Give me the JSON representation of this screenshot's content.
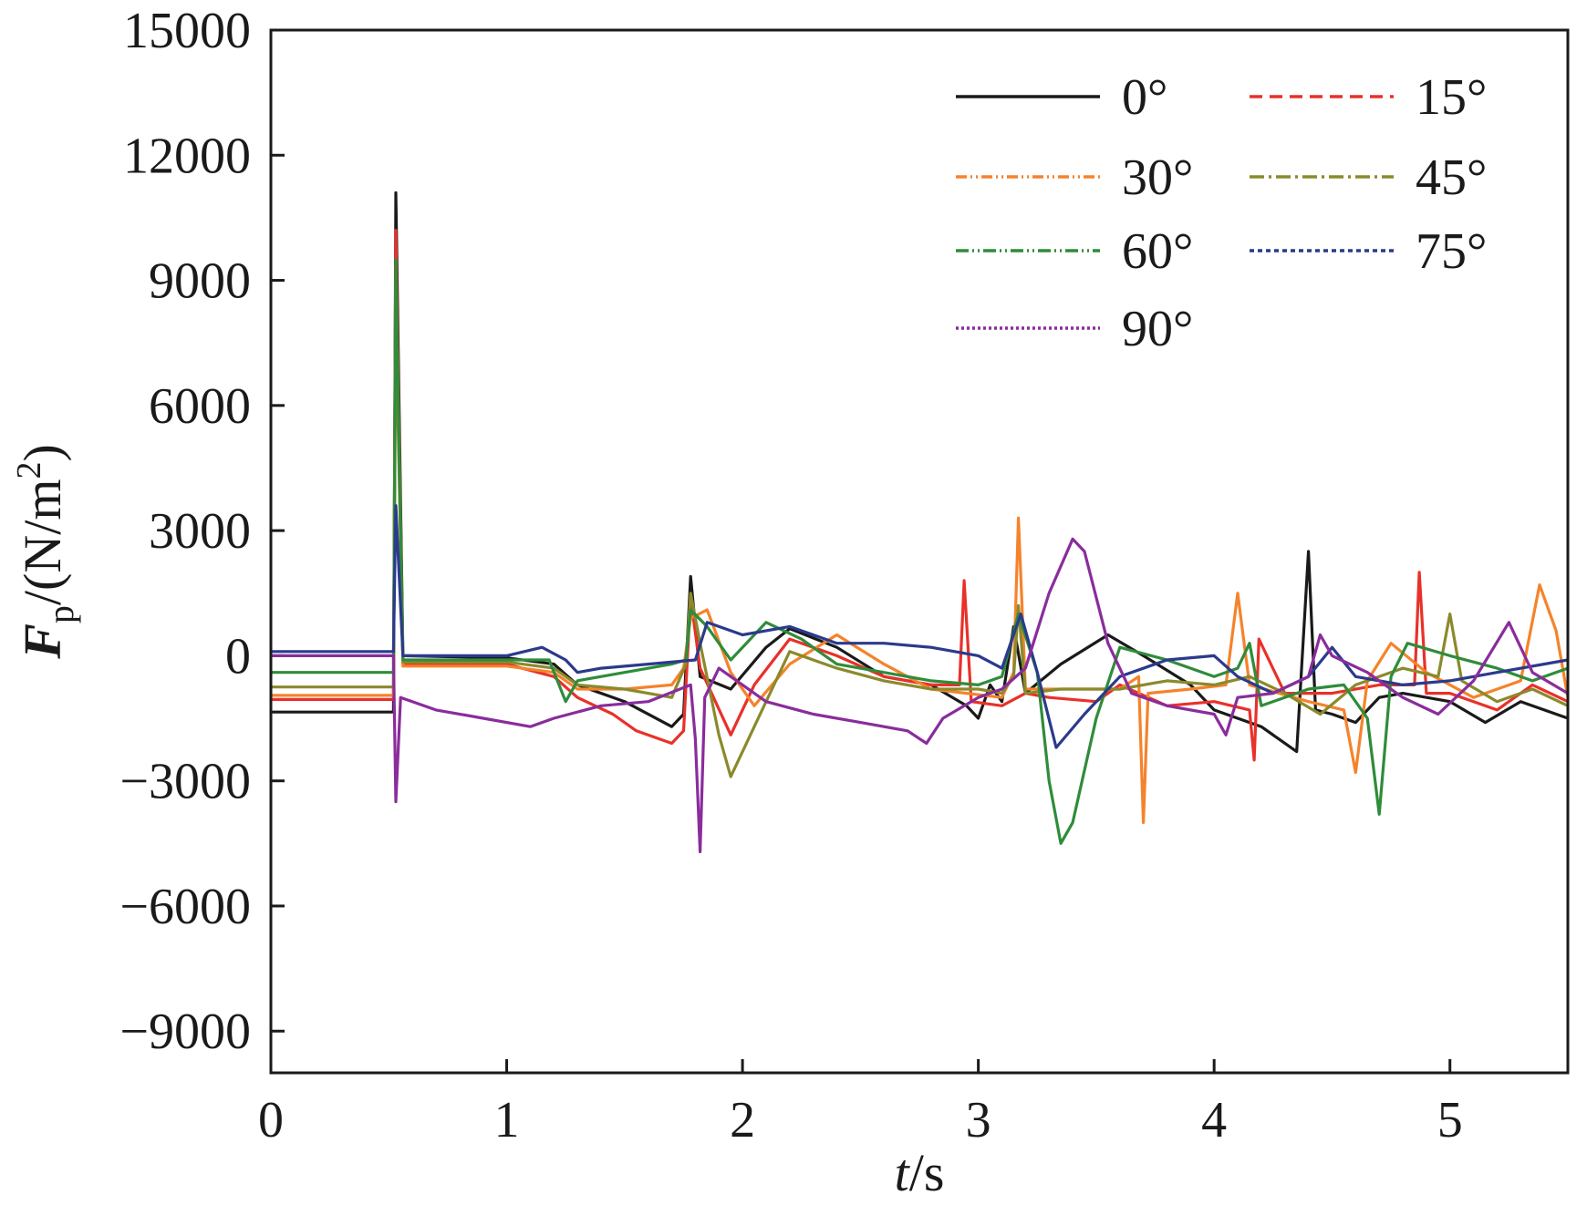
{
  "chart_data": {
    "type": "line",
    "title": "",
    "xlabel": {
      "var": "t",
      "unit": "/s"
    },
    "ylabel": {
      "var": "F",
      "sub": "p",
      "unit": "/(N/m",
      "sup": "2",
      "close": ")"
    },
    "xlim": [
      0,
      5.5
    ],
    "ylim": [
      -10000,
      15000
    ],
    "xticks": [
      0,
      1,
      2,
      3,
      4,
      5
    ],
    "xtick_labels": [
      "0",
      "1",
      "2",
      "3",
      "4",
      "5"
    ],
    "yticks": [
      15000,
      12000,
      9000,
      6000,
      3000,
      0,
      -3000,
      -6000,
      -9000
    ],
    "ytick_labels": [
      "15000",
      "12000",
      "9000",
      "6000",
      "3000",
      "0",
      "−3000",
      "−6000",
      "−9000"
    ],
    "grid": false,
    "legend_position": "top-right",
    "series": [
      {
        "name": "0°",
        "color": "#1a1a1a",
        "dash": "none",
        "points": [
          [
            0,
            -1350
          ],
          [
            0.52,
            -1350
          ],
          [
            0.53,
            11100
          ],
          [
            0.56,
            0
          ],
          [
            1.0,
            -50
          ],
          [
            1.2,
            -200
          ],
          [
            1.3,
            -700
          ],
          [
            1.5,
            -1100
          ],
          [
            1.7,
            -1700
          ],
          [
            1.75,
            -1400
          ],
          [
            1.78,
            1900
          ],
          [
            1.82,
            -500
          ],
          [
            1.95,
            -800
          ],
          [
            2.1,
            200
          ],
          [
            2.2,
            650
          ],
          [
            2.4,
            200
          ],
          [
            2.6,
            -500
          ],
          [
            2.8,
            -700
          ],
          [
            2.95,
            -1200
          ],
          [
            3.0,
            -1500
          ],
          [
            3.05,
            -700
          ],
          [
            3.1,
            -1100
          ],
          [
            3.15,
            700
          ],
          [
            3.2,
            -900
          ],
          [
            3.35,
            -200
          ],
          [
            3.55,
            500
          ],
          [
            3.7,
            0
          ],
          [
            3.9,
            -700
          ],
          [
            4.0,
            -1300
          ],
          [
            4.2,
            -1700
          ],
          [
            4.35,
            -2300
          ],
          [
            4.4,
            2500
          ],
          [
            4.43,
            -1300
          ],
          [
            4.5,
            -1400
          ],
          [
            4.6,
            -1600
          ],
          [
            4.7,
            -1000
          ],
          [
            4.8,
            -900
          ],
          [
            5.0,
            -1100
          ],
          [
            5.15,
            -1600
          ],
          [
            5.3,
            -1100
          ],
          [
            5.5,
            -1500
          ]
        ]
      },
      {
        "name": "15°",
        "color": "#e8312a",
        "dash": "14 8",
        "points": [
          [
            0,
            -1050
          ],
          [
            0.52,
            -1050
          ],
          [
            0.53,
            10200
          ],
          [
            0.56,
            -200
          ],
          [
            1.0,
            -200
          ],
          [
            1.2,
            -500
          ],
          [
            1.3,
            -1000
          ],
          [
            1.45,
            -1400
          ],
          [
            1.55,
            -1800
          ],
          [
            1.7,
            -2100
          ],
          [
            1.75,
            -1800
          ],
          [
            1.78,
            1400
          ],
          [
            1.82,
            -300
          ],
          [
            1.95,
            -1900
          ],
          [
            2.05,
            -700
          ],
          [
            2.2,
            400
          ],
          [
            2.4,
            0
          ],
          [
            2.6,
            -500
          ],
          [
            2.8,
            -700
          ],
          [
            2.92,
            -700
          ],
          [
            2.94,
            1800
          ],
          [
            2.97,
            -1100
          ],
          [
            3.1,
            -1200
          ],
          [
            3.2,
            -900
          ],
          [
            3.3,
            -1000
          ],
          [
            3.5,
            -1100
          ],
          [
            3.6,
            -700
          ],
          [
            3.8,
            -1200
          ],
          [
            4.0,
            -1100
          ],
          [
            4.15,
            -1300
          ],
          [
            4.17,
            -2500
          ],
          [
            4.19,
            400
          ],
          [
            4.3,
            -900
          ],
          [
            4.5,
            -900
          ],
          [
            4.7,
            -700
          ],
          [
            4.85,
            -700
          ],
          [
            4.87,
            2000
          ],
          [
            4.9,
            -900
          ],
          [
            5.0,
            -900
          ],
          [
            5.2,
            -1300
          ],
          [
            5.35,
            -700
          ],
          [
            5.5,
            -1100
          ]
        ]
      },
      {
        "name": "30°",
        "color": "#f5832b",
        "dash": "12 4 2 4 2 4",
        "points": [
          [
            0,
            -950
          ],
          [
            0.52,
            -950
          ],
          [
            0.53,
            9000
          ],
          [
            0.56,
            -250
          ],
          [
            1.0,
            -250
          ],
          [
            1.2,
            -400
          ],
          [
            1.3,
            -800
          ],
          [
            1.5,
            -800
          ],
          [
            1.7,
            -700
          ],
          [
            1.75,
            -300
          ],
          [
            1.78,
            900
          ],
          [
            1.85,
            1100
          ],
          [
            1.95,
            -400
          ],
          [
            2.05,
            -1200
          ],
          [
            2.2,
            -200
          ],
          [
            2.4,
            500
          ],
          [
            2.6,
            -200
          ],
          [
            2.8,
            -800
          ],
          [
            2.95,
            -900
          ],
          [
            3.1,
            -1000
          ],
          [
            3.15,
            -400
          ],
          [
            3.17,
            3300
          ],
          [
            3.2,
            -800
          ],
          [
            3.4,
            -800
          ],
          [
            3.6,
            -800
          ],
          [
            3.68,
            -500
          ],
          [
            3.7,
            -4000
          ],
          [
            3.72,
            -900
          ],
          [
            3.9,
            -800
          ],
          [
            4.05,
            -700
          ],
          [
            4.1,
            1500
          ],
          [
            4.15,
            -700
          ],
          [
            4.4,
            -1100
          ],
          [
            4.55,
            -1300
          ],
          [
            4.6,
            -2800
          ],
          [
            4.65,
            -600
          ],
          [
            4.75,
            300
          ],
          [
            4.9,
            -400
          ],
          [
            5.1,
            -1000
          ],
          [
            5.3,
            -600
          ],
          [
            5.38,
            1700
          ],
          [
            5.45,
            600
          ],
          [
            5.5,
            -1000
          ]
        ]
      },
      {
        "name": "45°",
        "color": "#8a8a2c",
        "dash": "16 5 3 5",
        "points": [
          [
            0,
            -750
          ],
          [
            0.52,
            -750
          ],
          [
            0.53,
            8200
          ],
          [
            0.56,
            -150
          ],
          [
            1.0,
            -150
          ],
          [
            1.2,
            -300
          ],
          [
            1.3,
            -700
          ],
          [
            1.5,
            -800
          ],
          [
            1.7,
            -1000
          ],
          [
            1.76,
            -200
          ],
          [
            1.78,
            1500
          ],
          [
            1.82,
            300
          ],
          [
            1.9,
            -1900
          ],
          [
            1.95,
            -2900
          ],
          [
            2.05,
            -1700
          ],
          [
            2.2,
            100
          ],
          [
            2.4,
            -300
          ],
          [
            2.6,
            -600
          ],
          [
            2.8,
            -800
          ],
          [
            3.0,
            -800
          ],
          [
            3.1,
            -900
          ],
          [
            3.15,
            -500
          ],
          [
            3.17,
            1200
          ],
          [
            3.2,
            -900
          ],
          [
            3.35,
            -800
          ],
          [
            3.6,
            -800
          ],
          [
            3.8,
            -600
          ],
          [
            4.0,
            -700
          ],
          [
            4.15,
            -500
          ],
          [
            4.3,
            -900
          ],
          [
            4.45,
            -1400
          ],
          [
            4.6,
            -700
          ],
          [
            4.8,
            -300
          ],
          [
            4.95,
            -500
          ],
          [
            5.0,
            1000
          ],
          [
            5.05,
            -600
          ],
          [
            5.2,
            -1100
          ],
          [
            5.35,
            -800
          ],
          [
            5.5,
            -1200
          ]
        ]
      },
      {
        "name": "60°",
        "color": "#2f8c3a",
        "dash": "14 4 2 4 2 4",
        "points": [
          [
            0,
            -400
          ],
          [
            0.52,
            -400
          ],
          [
            0.53,
            9500
          ],
          [
            0.56,
            -100
          ],
          [
            1.0,
            -100
          ],
          [
            1.18,
            -100
          ],
          [
            1.25,
            -1100
          ],
          [
            1.3,
            -600
          ],
          [
            1.5,
            -400
          ],
          [
            1.7,
            -200
          ],
          [
            1.76,
            -100
          ],
          [
            1.78,
            1100
          ],
          [
            1.85,
            700
          ],
          [
            1.95,
            -100
          ],
          [
            2.1,
            800
          ],
          [
            2.25,
            400
          ],
          [
            2.4,
            -200
          ],
          [
            2.6,
            -400
          ],
          [
            2.8,
            -600
          ],
          [
            3.0,
            -700
          ],
          [
            3.1,
            -500
          ],
          [
            3.17,
            1000
          ],
          [
            3.25,
            -400
          ],
          [
            3.3,
            -3000
          ],
          [
            3.35,
            -4500
          ],
          [
            3.4,
            -4000
          ],
          [
            3.5,
            -1500
          ],
          [
            3.6,
            200
          ],
          [
            3.8,
            -100
          ],
          [
            4.0,
            -500
          ],
          [
            4.1,
            -300
          ],
          [
            4.15,
            300
          ],
          [
            4.2,
            -1200
          ],
          [
            4.4,
            -800
          ],
          [
            4.55,
            -700
          ],
          [
            4.65,
            -1500
          ],
          [
            4.7,
            -3800
          ],
          [
            4.75,
            -500
          ],
          [
            4.82,
            300
          ],
          [
            5.0,
            0
          ],
          [
            5.2,
            -300
          ],
          [
            5.35,
            -600
          ],
          [
            5.5,
            -300
          ]
        ]
      },
      {
        "name": "75°",
        "color": "#2b3a8c",
        "dash": "5 4",
        "points": [
          [
            0,
            100
          ],
          [
            0.52,
            100
          ],
          [
            0.53,
            3600
          ],
          [
            0.56,
            0
          ],
          [
            1.0,
            0
          ],
          [
            1.15,
            200
          ],
          [
            1.25,
            -100
          ],
          [
            1.3,
            -400
          ],
          [
            1.4,
            -300
          ],
          [
            1.6,
            -200
          ],
          [
            1.8,
            -100
          ],
          [
            1.85,
            800
          ],
          [
            2.0,
            500
          ],
          [
            2.2,
            700
          ],
          [
            2.4,
            300
          ],
          [
            2.6,
            300
          ],
          [
            2.8,
            200
          ],
          [
            3.0,
            0
          ],
          [
            3.1,
            -300
          ],
          [
            3.18,
            1000
          ],
          [
            3.25,
            -400
          ],
          [
            3.33,
            -2200
          ],
          [
            3.45,
            -1400
          ],
          [
            3.6,
            -500
          ],
          [
            3.8,
            -100
          ],
          [
            4.0,
            0
          ],
          [
            4.1,
            -500
          ],
          [
            4.25,
            -900
          ],
          [
            4.4,
            -500
          ],
          [
            4.5,
            200
          ],
          [
            4.6,
            -500
          ],
          [
            4.8,
            -700
          ],
          [
            5.0,
            -600
          ],
          [
            5.2,
            -400
          ],
          [
            5.5,
            -100
          ]
        ]
      },
      {
        "name": "90°",
        "color": "#8a2c9c",
        "dash": "3 3",
        "points": [
          [
            0,
            0
          ],
          [
            0.52,
            0
          ],
          [
            0.53,
            -3500
          ],
          [
            0.55,
            -1000
          ],
          [
            0.7,
            -1300
          ],
          [
            0.9,
            -1500
          ],
          [
            1.1,
            -1700
          ],
          [
            1.2,
            -1500
          ],
          [
            1.4,
            -1200
          ],
          [
            1.6,
            -1100
          ],
          [
            1.78,
            -700
          ],
          [
            1.8,
            -2000
          ],
          [
            1.82,
            -4700
          ],
          [
            1.84,
            -1000
          ],
          [
            1.9,
            -300
          ],
          [
            2.1,
            -1100
          ],
          [
            2.3,
            -1400
          ],
          [
            2.5,
            -1600
          ],
          [
            2.7,
            -1800
          ],
          [
            2.78,
            -2100
          ],
          [
            2.85,
            -1500
          ],
          [
            3.0,
            -1000
          ],
          [
            3.1,
            -800
          ],
          [
            3.2,
            -300
          ],
          [
            3.3,
            1500
          ],
          [
            3.4,
            2800
          ],
          [
            3.45,
            2500
          ],
          [
            3.55,
            300
          ],
          [
            3.65,
            -900
          ],
          [
            3.8,
            -1200
          ],
          [
            4.0,
            -1400
          ],
          [
            4.05,
            -1900
          ],
          [
            4.1,
            -1000
          ],
          [
            4.25,
            -900
          ],
          [
            4.4,
            -500
          ],
          [
            4.45,
            500
          ],
          [
            4.5,
            0
          ],
          [
            4.65,
            -400
          ],
          [
            4.8,
            -1000
          ],
          [
            4.95,
            -1400
          ],
          [
            5.1,
            -600
          ],
          [
            5.25,
            800
          ],
          [
            5.35,
            -400
          ],
          [
            5.5,
            -900
          ]
        ]
      }
    ]
  }
}
